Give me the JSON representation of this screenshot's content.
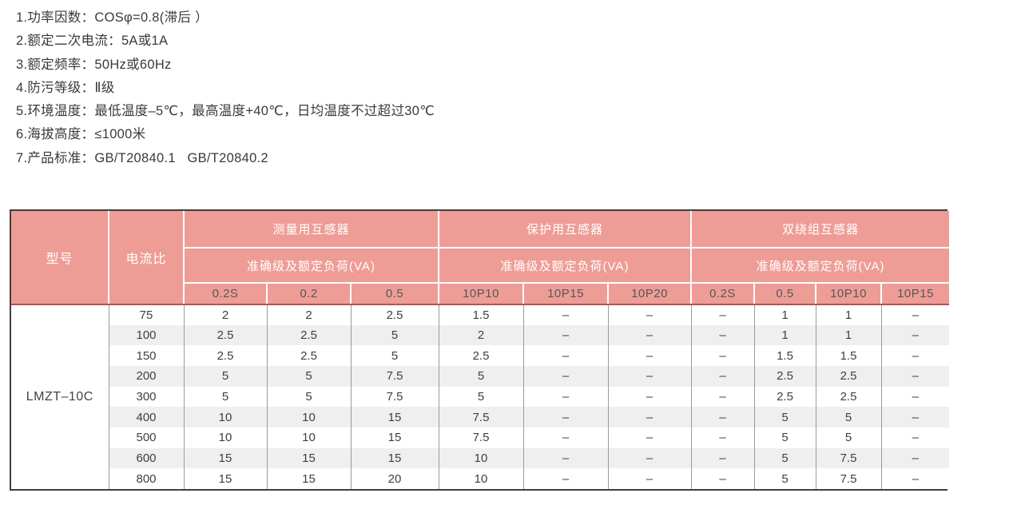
{
  "specs": {
    "items": [
      "1.功率因数：COSφ=0.8(滞后 ）",
      "2.额定二次电流：5A或1A",
      "3.额定频率：50Hz或60Hz",
      "4.防污等级：Ⅱ级",
      "5.环境温度：最低温度–5℃，最高温度+40℃，日均温度不过超过30℃",
      "6.海拔高度：≤1000米",
      "7.产品标准：GB/T20840.1   GB/T20840.2"
    ]
  },
  "table": {
    "model_header": "型号",
    "ratio_header": "电流比",
    "groups": [
      {
        "label": "测量用互感器",
        "sub": "准确级及额定负荷(VA)",
        "classes": [
          "0.2S",
          "0.2",
          "0.5"
        ]
      },
      {
        "label": "保护用互感器",
        "sub": "准确级及额定负荷(VA)",
        "classes": [
          "10P10",
          "10P15",
          "10P20"
        ]
      },
      {
        "label": "双绕组互感器",
        "sub": "准确级及额定负荷(VA)",
        "classes": [
          "0.2S",
          "0.5",
          "10P10",
          "10P15"
        ]
      }
    ],
    "model": "LMZT–10C",
    "rows": [
      {
        "ratio": "75",
        "values": [
          "2",
          "2",
          "2.5",
          "1.5",
          "–",
          "–",
          "–",
          "1",
          "1",
          "–"
        ]
      },
      {
        "ratio": "100",
        "values": [
          "2.5",
          "2.5",
          "5",
          "2",
          "–",
          "–",
          "–",
          "1",
          "1",
          "–"
        ]
      },
      {
        "ratio": "150",
        "values": [
          "2.5",
          "2.5",
          "5",
          "2.5",
          "–",
          "–",
          "–",
          "1.5",
          "1.5",
          "–"
        ]
      },
      {
        "ratio": "200",
        "values": [
          "5",
          "5",
          "7.5",
          "5",
          "–",
          "–",
          "–",
          "2.5",
          "2.5",
          "–"
        ]
      },
      {
        "ratio": "300",
        "values": [
          "5",
          "5",
          "7.5",
          "5",
          "–",
          "–",
          "–",
          "2.5",
          "2.5",
          "–"
        ]
      },
      {
        "ratio": "400",
        "values": [
          "10",
          "10",
          "15",
          "7.5",
          "–",
          "–",
          "–",
          "5",
          "5",
          "–"
        ]
      },
      {
        "ratio": "500",
        "values": [
          "10",
          "10",
          "15",
          "7.5",
          "–",
          "–",
          "–",
          "5",
          "5",
          "–"
        ]
      },
      {
        "ratio": "600",
        "values": [
          "15",
          "15",
          "15",
          "10",
          "–",
          "–",
          "–",
          "5",
          "7.5",
          "–"
        ]
      },
      {
        "ratio": "800",
        "values": [
          "15",
          "15",
          "20",
          "10",
          "–",
          "–",
          "–",
          "5",
          "7.5",
          "–"
        ]
      }
    ],
    "colors": {
      "header_bg": "#ee9d96",
      "header_text": "#ffffff",
      "header_separator": "#b5524b",
      "stripe": "#efefef",
      "grid": "#9b9b9b",
      "outer_border": "#3f3f3f"
    }
  }
}
